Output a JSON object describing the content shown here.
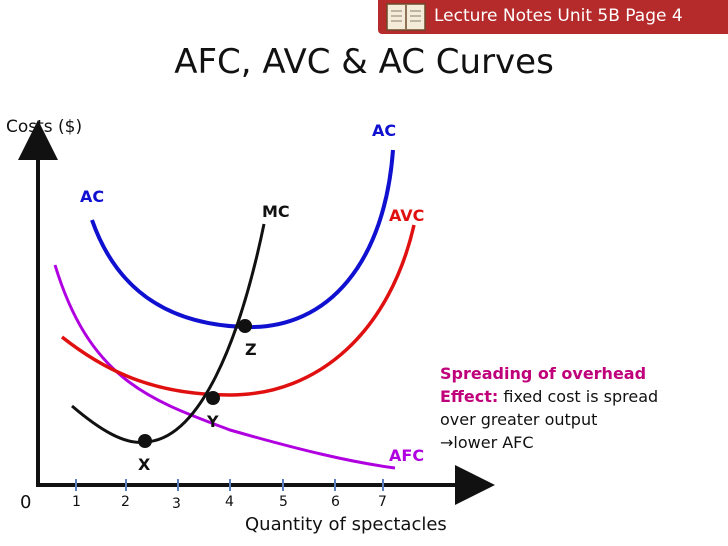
{
  "header": {
    "banner_text": "Lecture Notes Unit 5B Page 4",
    "banner_color": "#b52b2b"
  },
  "title": "AFC, AVC & AC Curves",
  "axes": {
    "y_label": "Costs ($)",
    "x_label": "Quantity of spectacles",
    "origin": "0",
    "x_ticks": [
      "1",
      "2",
      "3",
      "4",
      "5",
      "6",
      "7"
    ]
  },
  "curves": {
    "ac_top": "AC",
    "ac_left": "AC",
    "mc": "MC",
    "avc": "AVC",
    "afc": "AFC"
  },
  "points": {
    "x": "X",
    "y": "Y",
    "z": "Z"
  },
  "note": {
    "heading": "Spreading of overhead",
    "effect_label": "Effect:",
    "line1_rest": " fixed cost is spread",
    "line2": "over greater output",
    "line3": "lower AFC"
  },
  "colors": {
    "ac": "#1010d0",
    "avc": "#e01010",
    "afc": "#b000e0",
    "mc": "#111111",
    "note": "#c0007a"
  }
}
